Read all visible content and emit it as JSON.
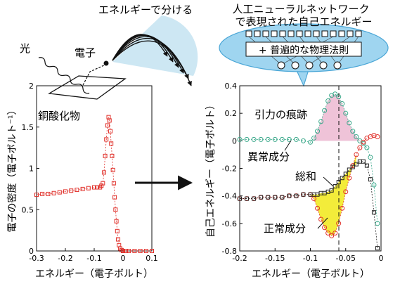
{
  "labels": {
    "energy_split": "エネルギーで分ける",
    "light": "光",
    "electron": "電子",
    "cuprate": "銅酸化物",
    "nn_line1": "人工ニューラルネットワーク",
    "nn_line2": "で表現された自己エネルギー",
    "nn_law": "+ 普遍的な物理法則",
    "attraction": "引力の痕跡",
    "anomalous": "異常成分",
    "sum": "総和",
    "normal": "正常成分"
  },
  "colors": {
    "red": "#e0302a",
    "teal": "#3aa88a",
    "black": "#222222",
    "pink_fill": "#efc3d8",
    "yellow_fill": "#f3ec3a",
    "bubble": "#9fd5f0",
    "bubble_edge": "#4aa6d6"
  },
  "chart_data": [
    {
      "type": "scatter",
      "title": "",
      "xlabel": "エネルギー（電子ボルト）",
      "ylabel": "電子の密度（電子ボルト⁻¹）",
      "xlim": [
        -0.3,
        0.1
      ],
      "ylim": [
        0,
        2
      ],
      "xticks": [
        -0.3,
        -0.2,
        -0.1,
        0,
        0.1
      ],
      "xtick_labels": [
        "-0.3",
        "-0.2",
        "-0.1",
        "0",
        "0.1"
      ],
      "yticks": [
        0,
        0.5,
        1,
        1.5,
        2
      ],
      "ytick_labels": [
        "0",
        "0.5",
        "1",
        "1.5",
        "2"
      ],
      "series": [
        {
          "color": "#e0302a",
          "x": [
            -0.3,
            -0.28,
            -0.26,
            -0.24,
            -0.22,
            -0.2,
            -0.18,
            -0.16,
            -0.14,
            -0.12,
            -0.1,
            -0.09,
            -0.08,
            -0.075,
            -0.07,
            -0.066,
            -0.062,
            -0.058,
            -0.054,
            -0.05,
            -0.047,
            -0.044,
            -0.041,
            -0.038,
            -0.035,
            -0.032,
            -0.029,
            -0.026,
            -0.023,
            -0.02,
            -0.017,
            -0.014,
            -0.01,
            -0.005,
            0.0,
            0.01,
            0.02,
            0.04,
            0.06,
            0.08,
            0.1
          ],
          "y": [
            0.68,
            0.69,
            0.69,
            0.7,
            0.71,
            0.72,
            0.73,
            0.74,
            0.75,
            0.76,
            0.77,
            0.77,
            0.77,
            0.79,
            0.82,
            0.95,
            1.15,
            1.35,
            1.52,
            1.62,
            1.58,
            1.45,
            1.3,
            1.15,
            0.98,
            0.82,
            0.65,
            0.5,
            0.36,
            0.24,
            0.14,
            0.07,
            0.03,
            0.01,
            0.0,
            0.0,
            0.0,
            0.0,
            0.0,
            0.0,
            0.0
          ]
        }
      ]
    },
    {
      "type": "scatter",
      "title": "",
      "xlabel": "エネルギー（電子ボルト）",
      "ylabel": "自己エネルギー（電子ボルト）",
      "xlim": [
        -0.2,
        0
      ],
      "ylim": [
        -0.8,
        0.4
      ],
      "xticks": [
        -0.2,
        -0.15,
        -0.1,
        -0.05,
        0
      ],
      "xtick_labels": [
        "-0.2",
        "-0.15",
        "-0.1",
        "-0.05",
        "0"
      ],
      "yticks": [
        -0.8,
        -0.6,
        -0.4,
        -0.2,
        0,
        0.2,
        0.4
      ],
      "ytick_labels": [
        "-0.8",
        "-0.6",
        "-0.4",
        "-0.2",
        "0",
        "0.2",
        "0.4"
      ],
      "series": [
        {
          "name": "異常成分",
          "color": "#3aa88a",
          "marker": "circle",
          "x": [
            -0.2,
            -0.19,
            -0.18,
            -0.17,
            -0.16,
            -0.15,
            -0.14,
            -0.13,
            -0.12,
            -0.11,
            -0.1,
            -0.095,
            -0.09,
            -0.085,
            -0.08,
            -0.075,
            -0.07,
            -0.065,
            -0.06,
            -0.055,
            -0.05,
            -0.045,
            -0.04,
            -0.035,
            -0.03,
            -0.025,
            -0.02,
            -0.015,
            -0.01,
            -0.005
          ],
          "y": [
            0.01,
            0.01,
            0.01,
            0.01,
            0.01,
            0.01,
            0.01,
            0.01,
            0.01,
            0.0,
            -0.01,
            0.02,
            0.07,
            0.14,
            0.22,
            0.29,
            0.33,
            0.34,
            0.32,
            0.27,
            0.2,
            0.13,
            0.07,
            0.03,
            0.0,
            -0.02,
            -0.05,
            -0.12,
            -0.32,
            -0.6
          ]
        },
        {
          "name": "正常成分",
          "color": "#e0302a",
          "marker": "circle",
          "x": [
            -0.2,
            -0.19,
            -0.18,
            -0.17,
            -0.16,
            -0.15,
            -0.14,
            -0.13,
            -0.12,
            -0.11,
            -0.1,
            -0.095,
            -0.09,
            -0.085,
            -0.08,
            -0.075,
            -0.07,
            -0.065,
            -0.06,
            -0.055,
            -0.05,
            -0.045,
            -0.04,
            -0.035,
            -0.03,
            -0.025,
            -0.02,
            -0.015,
            -0.01,
            -0.005
          ],
          "y": [
            -0.42,
            -0.42,
            -0.42,
            -0.41,
            -0.41,
            -0.41,
            -0.41,
            -0.4,
            -0.4,
            -0.39,
            -0.39,
            -0.42,
            -0.49,
            -0.57,
            -0.63,
            -0.67,
            -0.69,
            -0.67,
            -0.6,
            -0.49,
            -0.37,
            -0.27,
            -0.18,
            -0.1,
            -0.05,
            -0.01,
            0.02,
            0.03,
            0.04,
            0.03
          ]
        },
        {
          "name": "総和",
          "color": "#222222",
          "marker": "square",
          "x": [
            -0.2,
            -0.19,
            -0.18,
            -0.17,
            -0.16,
            -0.15,
            -0.14,
            -0.13,
            -0.12,
            -0.11,
            -0.1,
            -0.095,
            -0.09,
            -0.085,
            -0.08,
            -0.075,
            -0.07,
            -0.065,
            -0.06,
            -0.055,
            -0.05,
            -0.045,
            -0.04,
            -0.035,
            -0.03,
            -0.025,
            -0.02,
            -0.015,
            -0.01,
            -0.005
          ],
          "y": [
            -0.42,
            -0.42,
            -0.42,
            -0.41,
            -0.41,
            -0.41,
            -0.41,
            -0.4,
            -0.4,
            -0.39,
            -0.39,
            -0.39,
            -0.39,
            -0.38,
            -0.38,
            -0.37,
            -0.36,
            -0.33,
            -0.3,
            -0.27,
            -0.24,
            -0.21,
            -0.19,
            -0.17,
            -0.15,
            -0.15,
            -0.18,
            -0.28,
            -0.52,
            -0.78
          ]
        }
      ]
    }
  ]
}
